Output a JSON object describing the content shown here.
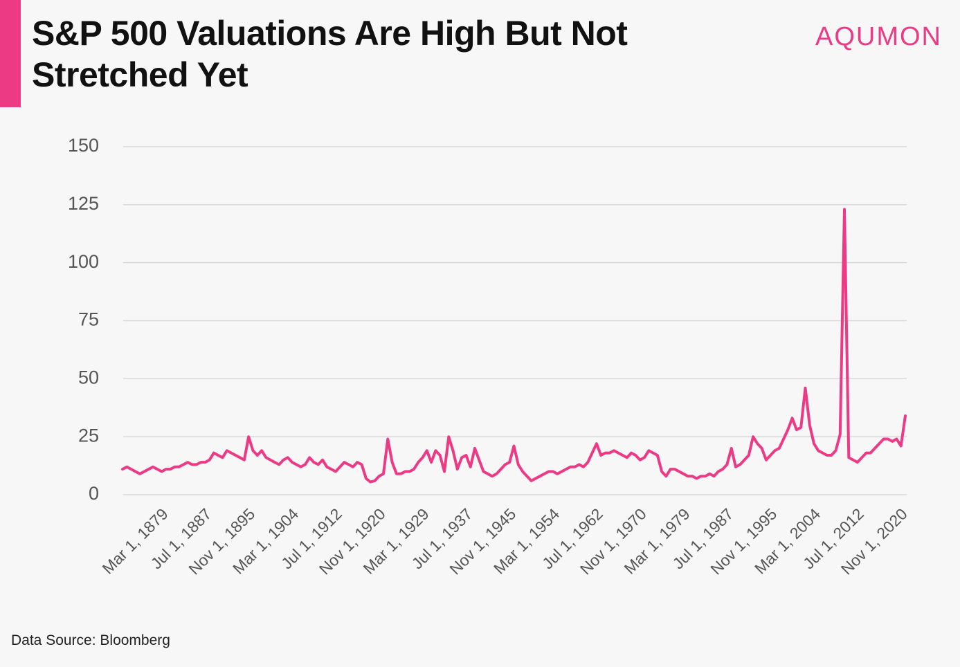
{
  "chart_data": {
    "type": "line",
    "title": "S&P 500 Valuations Are High But Not Stretched Yet",
    "brand": "AQUMON",
    "source": "Data Source: Bloomberg",
    "color": "#ec3a85",
    "grid": true,
    "ylim": [
      0,
      150
    ],
    "yticks": [
      0,
      25,
      50,
      75,
      100,
      125,
      150
    ],
    "categories": [
      null,
      null,
      null,
      null,
      null,
      null,
      null,
      null,
      null,
      null,
      "Mar 1, 1879",
      null,
      null,
      null,
      null,
      null,
      null,
      null,
      null,
      null,
      "Jul 1, 1887",
      null,
      null,
      null,
      null,
      null,
      null,
      null,
      null,
      null,
      "Nov 1, 1895",
      null,
      null,
      null,
      null,
      null,
      null,
      null,
      null,
      null,
      "Mar 1, 1904",
      null,
      null,
      null,
      null,
      null,
      null,
      null,
      null,
      null,
      "Jul 1, 1912",
      null,
      null,
      null,
      null,
      null,
      null,
      null,
      null,
      null,
      "Nov 1, 1920",
      null,
      null,
      null,
      null,
      null,
      null,
      null,
      null,
      null,
      "Mar 1, 1929",
      null,
      null,
      null,
      null,
      null,
      null,
      null,
      null,
      null,
      "Jul 1, 1937",
      null,
      null,
      null,
      null,
      null,
      null,
      null,
      null,
      null,
      "Nov 1, 1945",
      null,
      null,
      null,
      null,
      null,
      null,
      null,
      null,
      null,
      "Mar 1, 1954",
      null,
      null,
      null,
      null,
      null,
      null,
      null,
      null,
      null,
      "Jul 1, 1962",
      null,
      null,
      null,
      null,
      null,
      null,
      null,
      null,
      null,
      "Nov 1, 1970",
      null,
      null,
      null,
      null,
      null,
      null,
      null,
      null,
      null,
      "Mar 1, 1979",
      null,
      null,
      null,
      null,
      null,
      null,
      null,
      null,
      null,
      "Jul 1, 1987",
      null,
      null,
      null,
      null,
      null,
      null,
      null,
      null,
      null,
      "Nov 1, 1995",
      null,
      null,
      null,
      null,
      null,
      null,
      null,
      null,
      null,
      "Mar 1, 2004",
      null,
      null,
      null,
      null,
      null,
      null,
      null,
      null,
      null,
      "Jul 1, 2012",
      null,
      null,
      null,
      null,
      null,
      null,
      null,
      null,
      null,
      "Nov 1, 2020"
    ],
    "values": [
      11,
      12,
      11,
      10,
      9,
      10,
      11,
      12,
      11,
      10,
      11,
      11,
      12,
      12,
      13,
      14,
      13,
      13,
      14,
      14,
      15,
      18,
      17,
      16,
      19,
      18,
      17,
      16,
      15,
      25,
      19,
      17,
      19,
      16,
      15,
      14,
      13,
      15,
      16,
      14,
      13,
      12,
      13,
      16,
      14,
      13,
      15,
      12,
      11,
      10,
      12,
      14,
      13,
      12,
      14,
      13,
      7,
      5.5,
      6,
      8,
      9,
      24,
      14,
      9,
      9,
      10,
      10,
      11,
      14,
      16,
      19,
      14,
      19,
      17,
      10,
      25,
      19,
      11,
      16,
      17,
      12,
      20,
      15,
      10,
      9,
      8,
      9,
      11,
      13,
      14,
      21,
      13,
      10,
      8,
      6,
      7,
      8,
      9,
      10,
      10,
      9,
      10,
      11,
      12,
      12,
      13,
      12,
      14,
      18,
      22,
      17,
      18,
      18,
      19,
      18,
      17,
      16,
      18,
      17,
      15,
      16,
      19,
      18,
      17,
      10,
      8,
      11,
      11,
      10,
      9,
      8,
      8,
      7,
      8,
      8,
      9,
      8,
      10,
      11,
      13,
      20,
      12,
      13,
      15,
      17,
      25,
      22,
      20,
      15,
      17,
      19,
      20,
      24,
      28,
      33,
      28,
      29,
      46,
      30,
      22,
      19,
      18,
      17,
      17,
      19,
      26,
      123,
      16,
      15,
      14,
      16,
      18,
      18,
      20,
      22,
      24,
      24,
      23,
      24,
      21,
      34
    ]
  }
}
